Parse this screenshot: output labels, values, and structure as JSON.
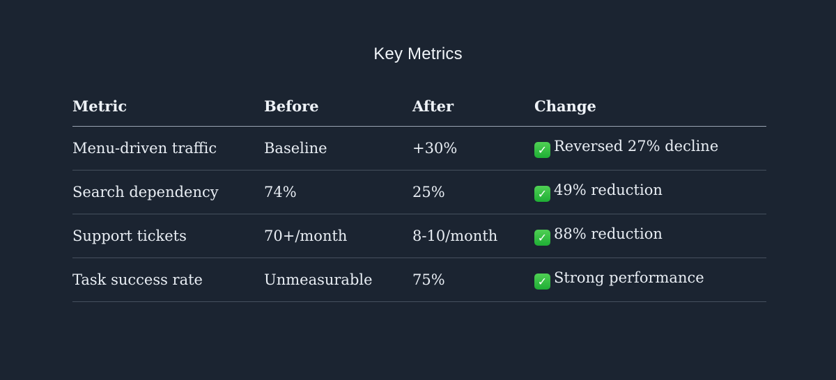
{
  "page": {
    "title": "Key Metrics"
  },
  "theme": {
    "background_color": "#1b2431",
    "text_color": "#e9eef4",
    "header_border_color": "#9aa5b3",
    "row_border_color": "#46505e",
    "check_green_color": "#22b33c"
  },
  "icons": {
    "check_glyph": "✓"
  },
  "table": {
    "columns": [
      "Metric",
      "Before",
      "After",
      "Change"
    ],
    "rows": [
      {
        "metric": "Menu-driven traffic",
        "before": "Baseline",
        "after": "+30%",
        "change_icon": "check-mark-emoji",
        "change": "Reversed 27% decline"
      },
      {
        "metric": "Search dependency",
        "before": "74%",
        "after": "25%",
        "change_icon": "check-mark-emoji",
        "change": "49% reduction"
      },
      {
        "metric": "Support tickets",
        "before": "70+/month",
        "after": "8-10/month",
        "change_icon": "check-mark-emoji",
        "change": "88% reduction"
      },
      {
        "metric": "Task success rate",
        "before": "Unmeasurable",
        "after": "75%",
        "change_icon": "check-mark-emoji",
        "change": "Strong performance"
      }
    ]
  }
}
